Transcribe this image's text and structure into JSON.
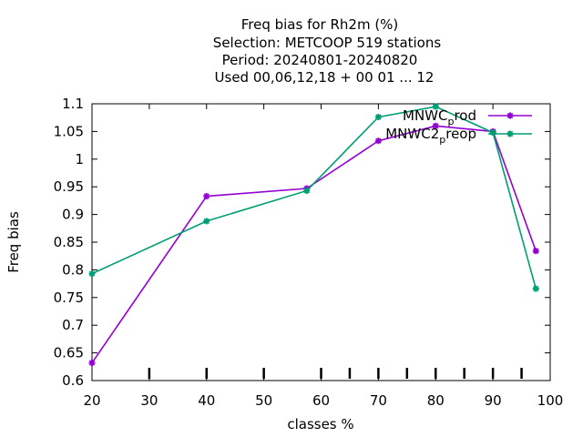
{
  "chart_data": {
    "type": "line",
    "title_lines": [
      "Freq bias  for Rh2m (%)",
      "Selection: METCOOP    519 stations",
      "Period: 20240801-20240820",
      "Used  00,06,12,18 + 00 01 ... 12"
    ],
    "xlabel": "classes %",
    "ylabel": "Freq bias",
    "xlim": [
      20,
      100
    ],
    "ylim": [
      0.6,
      1.1
    ],
    "x_ticks": [
      20,
      30,
      40,
      50,
      60,
      70,
      80,
      90,
      100
    ],
    "x_tick_labels": [
      "20",
      "30",
      "40",
      "50",
      "60",
      "70",
      "80",
      "90",
      "100"
    ],
    "y_ticks": [
      0.6,
      0.65,
      0.7,
      0.75,
      0.8,
      0.85,
      0.9,
      0.95,
      1.0,
      1.05,
      1.1
    ],
    "y_tick_labels": [
      "0.6",
      "0.65",
      "0.7",
      "0.75",
      "0.8",
      "0.85",
      "0.9",
      "0.95",
      "1",
      "1.05",
      "1.1"
    ],
    "bottom_marker_x": [
      30,
      40,
      50,
      60,
      65,
      70,
      75,
      80,
      85,
      90,
      95
    ],
    "grid": false,
    "legend_position": "top-right",
    "series": [
      {
        "legend_main": "MNWC",
        "legend_sub": "p",
        "legend_rest": "rod",
        "color": "#9400d3",
        "x": [
          20,
          40,
          57.5,
          70,
          80,
          90,
          97.5
        ],
        "y": [
          0.632,
          0.933,
          0.947,
          1.033,
          1.06,
          1.05,
          0.834
        ]
      },
      {
        "legend_main": "MNWC2",
        "legend_sub": "p",
        "legend_rest": "reop",
        "color": "#009e73",
        "x": [
          20,
          40,
          57.5,
          70,
          80,
          90,
          97.5
        ],
        "y": [
          0.793,
          0.888,
          0.943,
          1.076,
          1.095,
          1.048,
          0.766
        ]
      }
    ]
  }
}
